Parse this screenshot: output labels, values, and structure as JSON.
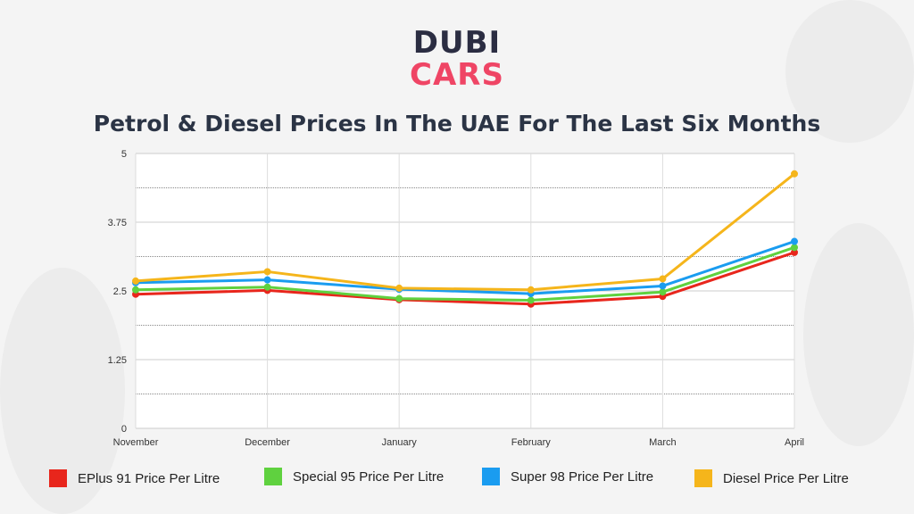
{
  "logo": {
    "line1": "DUBI",
    "line2": "CARS"
  },
  "chart_data": {
    "type": "line",
    "title": "Petrol & Diesel Prices In The UAE For The Last Six Months",
    "xlabel": "",
    "ylabel": "",
    "categories": [
      "November",
      "December",
      "January",
      "February",
      "March",
      "April"
    ],
    "ylim": [
      0,
      5
    ],
    "yticks": [
      "0",
      "1.25",
      "2.5",
      "3.75",
      "5"
    ],
    "grid": true,
    "legend_position": "bottom",
    "series": [
      {
        "name": "EPlus 91 Price Per Litre",
        "color": "#e8261c",
        "values": [
          2.44,
          2.51,
          2.34,
          2.26,
          2.4,
          3.2
        ]
      },
      {
        "name": "Special 95 Price Per Litre",
        "color": "#5fd13f",
        "values": [
          2.52,
          2.57,
          2.36,
          2.33,
          2.48,
          3.29
        ]
      },
      {
        "name": "Super 98 Price Per Litre",
        "color": "#1a9cf0",
        "values": [
          2.65,
          2.7,
          2.53,
          2.45,
          2.59,
          3.4
        ]
      },
      {
        "name": "Diesel Price Per Litre",
        "color": "#f5b51b",
        "values": [
          2.68,
          2.85,
          2.55,
          2.52,
          2.72,
          4.63
        ]
      }
    ]
  }
}
